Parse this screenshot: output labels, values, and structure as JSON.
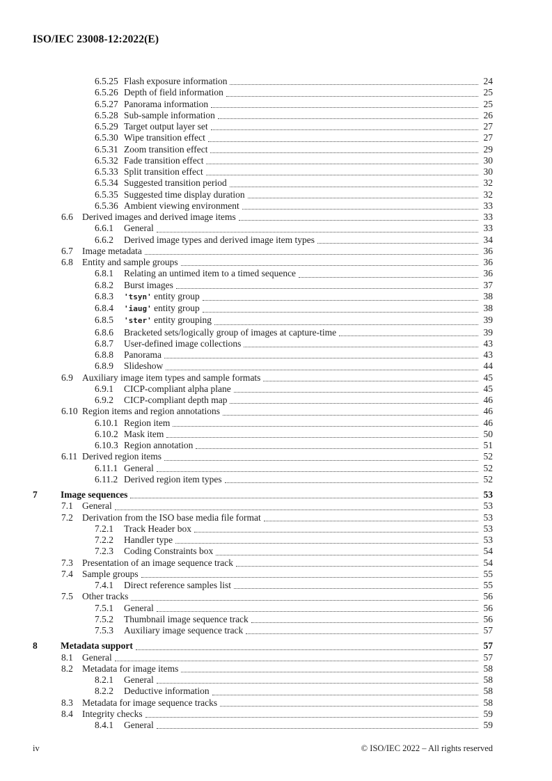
{
  "header": {
    "title": "ISO/IEC 23008-12:2022(E)"
  },
  "footer": {
    "page_label": "iv",
    "copyright": "© ISO/IEC 2022 – All rights reserved"
  },
  "toc": {
    "entries": [
      {
        "level": 3,
        "num": "6.5.25",
        "title": "Flash exposure information",
        "page": "24"
      },
      {
        "level": 3,
        "num": "6.5.26",
        "title": "Depth of field information",
        "page": "25"
      },
      {
        "level": 3,
        "num": "6.5.27",
        "title": "Panorama information",
        "page": "25"
      },
      {
        "level": 3,
        "num": "6.5.28",
        "title": "Sub-sample information",
        "page": "26"
      },
      {
        "level": 3,
        "num": "6.5.29",
        "title": "Target output layer set",
        "page": "27"
      },
      {
        "level": 3,
        "num": "6.5.30",
        "title": "Wipe transition effect",
        "page": "27"
      },
      {
        "level": 3,
        "num": "6.5.31",
        "title": "Zoom transition effect",
        "page": "29"
      },
      {
        "level": 3,
        "num": "6.5.32",
        "title": "Fade transition effect",
        "page": "30"
      },
      {
        "level": 3,
        "num": "6.5.33",
        "title": "Split transition effect",
        "page": "30"
      },
      {
        "level": 3,
        "num": "6.5.34",
        "title": "Suggested transition period",
        "page": "32"
      },
      {
        "level": 3,
        "num": "6.5.35",
        "title": "Suggested time display duration",
        "page": "32"
      },
      {
        "level": 3,
        "num": "6.5.36",
        "title": "Ambient viewing environment",
        "page": "33"
      },
      {
        "level": 2,
        "num": "6.6",
        "title": "Derived images and derived image items",
        "page": "33"
      },
      {
        "level": 3,
        "num": "6.6.1",
        "title": "General",
        "page": "33"
      },
      {
        "level": 3,
        "num": "6.6.2",
        "title": "Derived image types and derived image item types",
        "page": "34"
      },
      {
        "level": 2,
        "num": "6.7",
        "title": "Image metadata",
        "page": "36"
      },
      {
        "level": 2,
        "num": "6.8",
        "title": "Entity and sample groups",
        "page": "36"
      },
      {
        "level": 3,
        "num": "6.8.1",
        "title": "Relating an untimed item to a timed sequence",
        "page": "36"
      },
      {
        "level": 3,
        "num": "6.8.2",
        "title": "Burst images",
        "page": "37"
      },
      {
        "level": 3,
        "num": "6.8.3",
        "code": "'tsyn'",
        "title": " entity group",
        "page": "38"
      },
      {
        "level": 3,
        "num": "6.8.4",
        "code": "'iaug'",
        "title": " entity group",
        "page": "38"
      },
      {
        "level": 3,
        "num": "6.8.5",
        "code": "'ster'",
        "title": " entity grouping",
        "page": "39"
      },
      {
        "level": 3,
        "num": "6.8.6",
        "title": "Bracketed sets/logically group of images at capture-time",
        "page": "39"
      },
      {
        "level": 3,
        "num": "6.8.7",
        "title": "User-defined image collections",
        "page": "43"
      },
      {
        "level": 3,
        "num": "6.8.8",
        "title": "Panorama",
        "page": "43"
      },
      {
        "level": 3,
        "num": "6.8.9",
        "title": "Slideshow",
        "page": "44"
      },
      {
        "level": 2,
        "num": "6.9",
        "title": "Auxiliary image item types and sample formats",
        "page": "45"
      },
      {
        "level": 3,
        "num": "6.9.1",
        "title": "CICP-compliant alpha plane",
        "page": "45"
      },
      {
        "level": 3,
        "num": "6.9.2",
        "title": "CICP-compliant depth map",
        "page": "46"
      },
      {
        "level": 2,
        "num": "6.10",
        "title": "Region items and region annotations",
        "page": "46"
      },
      {
        "level": 3,
        "num": "6.10.1",
        "title": "Region item",
        "page": "46"
      },
      {
        "level": 3,
        "num": "6.10.2",
        "title": "Mask item",
        "page": "50"
      },
      {
        "level": 3,
        "num": "6.10.3",
        "title": "Region annotation",
        "page": "51"
      },
      {
        "level": 2,
        "num": "6.11",
        "title": "Derived region items",
        "page": "52"
      },
      {
        "level": 3,
        "num": "6.11.1",
        "title": "General",
        "page": "52"
      },
      {
        "level": 3,
        "num": "6.11.2",
        "title": "Derived region item types",
        "page": "52"
      },
      {
        "level": 1,
        "num": "7",
        "title": "Image sequences",
        "page": "53"
      },
      {
        "level": 2,
        "num": "7.1",
        "title": "General",
        "page": "53"
      },
      {
        "level": 2,
        "num": "7.2",
        "title": "Derivation from the ISO base media file format",
        "page": "53"
      },
      {
        "level": 3,
        "num": "7.2.1",
        "title": "Track Header box",
        "page": "53"
      },
      {
        "level": 3,
        "num": "7.2.2",
        "title": "Handler type",
        "page": "53"
      },
      {
        "level": 3,
        "num": "7.2.3",
        "title": "Coding Constraints box",
        "page": "54"
      },
      {
        "level": 2,
        "num": "7.3",
        "title": "Presentation of an image sequence track",
        "page": "54"
      },
      {
        "level": 2,
        "num": "7.4",
        "title": "Sample groups",
        "page": "55"
      },
      {
        "level": 3,
        "num": "7.4.1",
        "title": "Direct reference samples list",
        "page": "55"
      },
      {
        "level": 2,
        "num": "7.5",
        "title": "Other tracks",
        "page": "56"
      },
      {
        "level": 3,
        "num": "7.5.1",
        "title": "General",
        "page": "56"
      },
      {
        "level": 3,
        "num": "7.5.2",
        "title": "Thumbnail image sequence track",
        "page": "56"
      },
      {
        "level": 3,
        "num": "7.5.3",
        "title": "Auxiliary image sequence track",
        "page": "57"
      },
      {
        "level": 1,
        "num": "8",
        "title": "Metadata support",
        "page": "57"
      },
      {
        "level": 2,
        "num": "8.1",
        "title": "General",
        "page": "57"
      },
      {
        "level": 2,
        "num": "8.2",
        "title": "Metadata for image items",
        "page": "58"
      },
      {
        "level": 3,
        "num": "8.2.1",
        "title": "General",
        "page": "58"
      },
      {
        "level": 3,
        "num": "8.2.2",
        "title": "Deductive information",
        "page": "58"
      },
      {
        "level": 2,
        "num": "8.3",
        "title": "Metadata for image sequence tracks",
        "page": "58"
      },
      {
        "level": 2,
        "num": "8.4",
        "title": "Integrity checks",
        "page": "59"
      },
      {
        "level": 3,
        "num": "8.4.1",
        "title": "General",
        "page": "59"
      }
    ]
  }
}
